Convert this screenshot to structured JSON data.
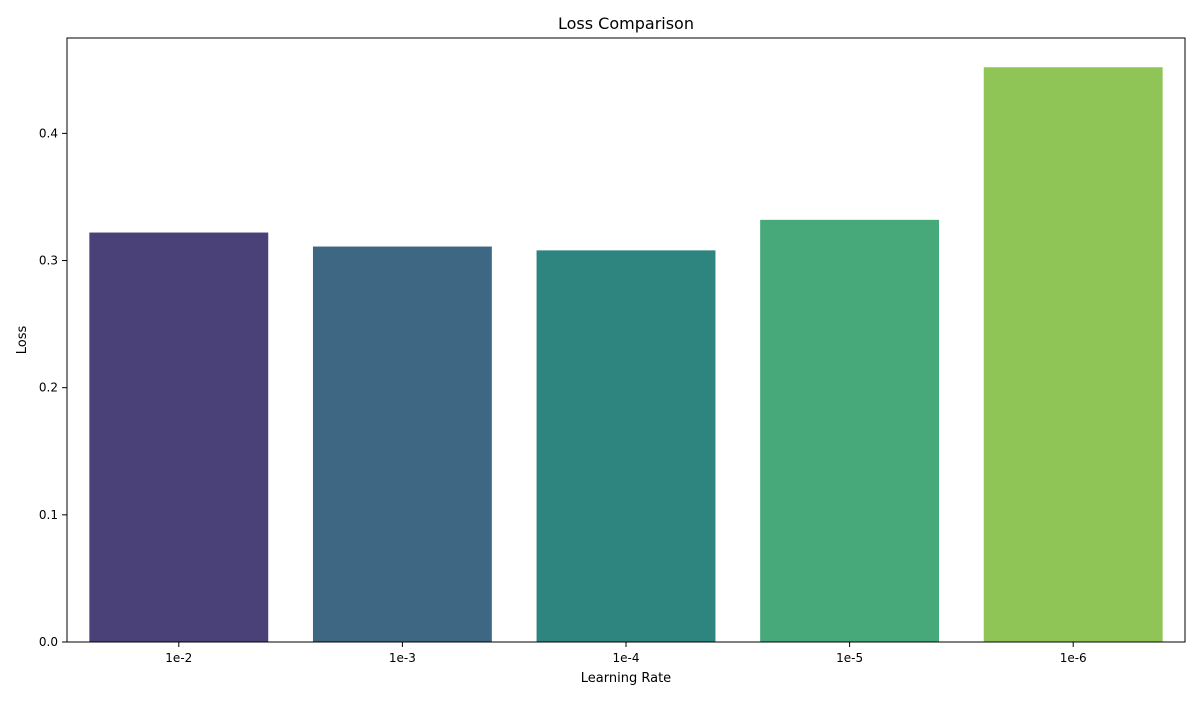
{
  "chart_data": {
    "type": "bar",
    "title": "Loss Comparison",
    "xlabel": "Learning Rate",
    "ylabel": "Loss",
    "categories": [
      "1e-2",
      "1e-3",
      "1e-4",
      "1e-5",
      "1e-6"
    ],
    "values": [
      0.322,
      0.311,
      0.308,
      0.332,
      0.452
    ],
    "colors": [
      "#4a4178",
      "#3e6783",
      "#2e8580",
      "#47a97a",
      "#8fc457"
    ],
    "ylim": [
      0,
      0.475
    ],
    "yticks": [
      0.0,
      0.1,
      0.2,
      0.3,
      0.4
    ],
    "ytick_labels": [
      "0.0",
      "0.1",
      "0.2",
      "0.3",
      "0.4"
    ],
    "grid": false,
    "legend": "none"
  }
}
